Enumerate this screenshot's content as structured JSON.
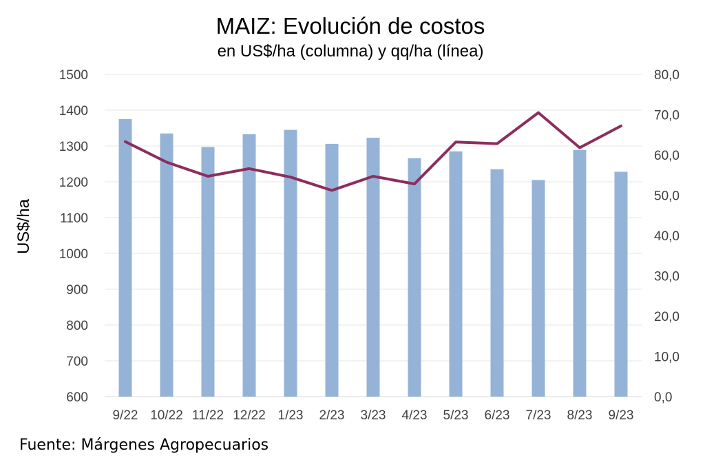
{
  "chart_data": {
    "type": "bar",
    "title": "MAIZ: Evolución de costos",
    "subtitle": "en US$/ha (columna) y qq/ha (línea)",
    "ylabel": "US$/ha",
    "y2label": "",
    "categories": [
      "9/22",
      "10/22",
      "11/22",
      "12/22",
      "1/23",
      "2/23",
      "3/23",
      "4/23",
      "5/23",
      "6/23",
      "7/23",
      "8/23",
      "9/23"
    ],
    "ylim": [
      600,
      1500
    ],
    "y_ticks": [
      "600",
      "700",
      "800",
      "900",
      "1000",
      "1100",
      "1200",
      "1300",
      "1400",
      "1500"
    ],
    "y2lim": [
      0,
      80
    ],
    "y2_ticks": [
      "0,0",
      "10,0",
      "20,0",
      "30,0",
      "40,0",
      "50,0",
      "60,0",
      "70,0",
      "80,0"
    ],
    "series": [
      {
        "type": "bar",
        "axis": "left",
        "color": "#95B3D7",
        "values": [
          1375,
          1335,
          1297,
          1333,
          1345,
          1306,
          1323,
          1266,
          1285,
          1235,
          1205,
          1289,
          1228
        ]
      },
      {
        "type": "line",
        "axis": "right",
        "color": "#8B2E5E",
        "values": [
          63.3,
          58.2,
          54.7,
          56.6,
          54.5,
          51.2,
          54.7,
          52.8,
          63.2,
          62.8,
          70.5,
          61.8,
          67.2
        ]
      }
    ],
    "grid": true,
    "legend": "none"
  },
  "source": "Fuente: Márgenes Agropecuarios"
}
